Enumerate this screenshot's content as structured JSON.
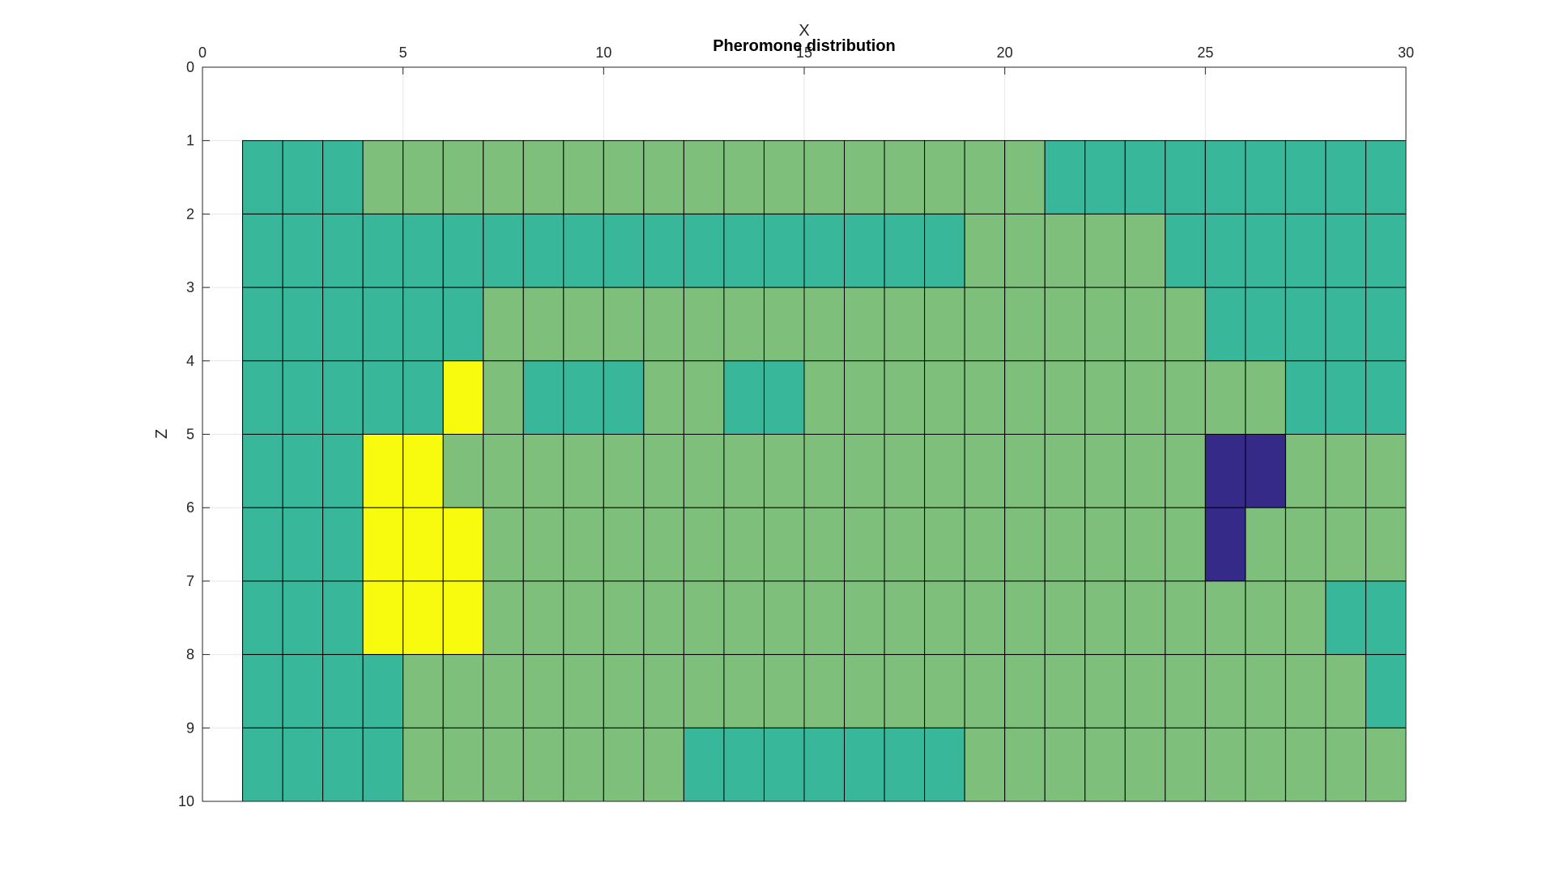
{
  "chart_data": {
    "type": "heatmap",
    "title": "Pheromone distribution",
    "xlabel": "X",
    "ylabel": "Z",
    "xlim": [
      0,
      30
    ],
    "ylim": [
      0,
      10
    ],
    "y_reversed": true,
    "x_axis_location": "top",
    "grid": true,
    "x_ticks": [
      0,
      5,
      10,
      15,
      20,
      25,
      30
    ],
    "y_ticks": [
      0,
      1,
      2,
      3,
      4,
      5,
      6,
      7,
      8,
      9,
      10
    ],
    "x_tick_labels": [
      "0",
      "5",
      "10",
      "15",
      "20",
      "25",
      "30"
    ],
    "y_tick_labels": [
      "0",
      "1",
      "2",
      "3",
      "4",
      "5",
      "6",
      "7",
      "8",
      "9",
      "10"
    ],
    "cell_x_edges": [
      1,
      30
    ],
    "cell_z_edges": [
      1,
      10
    ],
    "colormap": {
      "0": "#352a87",
      "1": "#38b79b",
      "2": "#7dbf7b",
      "3": "#f9fb0e"
    },
    "matrix": [
      [
        1,
        1,
        1,
        2,
        2,
        2,
        2,
        2,
        2,
        2,
        2,
        2,
        2,
        2,
        2,
        2,
        2,
        2,
        2,
        2,
        1,
        1,
        1,
        1,
        1,
        1,
        1,
        1,
        1
      ],
      [
        1,
        1,
        1,
        1,
        1,
        1,
        1,
        1,
        1,
        1,
        1,
        1,
        1,
        1,
        1,
        1,
        1,
        1,
        2,
        2,
        2,
        2,
        2,
        1,
        1,
        1,
        1,
        1,
        1
      ],
      [
        1,
        1,
        1,
        1,
        1,
        1,
        2,
        2,
        2,
        2,
        2,
        2,
        2,
        2,
        2,
        2,
        2,
        2,
        2,
        2,
        2,
        2,
        2,
        2,
        1,
        1,
        1,
        1,
        1
      ],
      [
        1,
        1,
        1,
        1,
        1,
        3,
        2,
        1,
        1,
        1,
        2,
        2,
        1,
        1,
        2,
        2,
        2,
        2,
        2,
        2,
        2,
        2,
        2,
        2,
        2,
        2,
        1,
        1,
        1
      ],
      [
        1,
        1,
        1,
        3,
        3,
        2,
        2,
        2,
        2,
        2,
        2,
        2,
        2,
        2,
        2,
        2,
        2,
        2,
        2,
        2,
        2,
        2,
        2,
        2,
        0,
        0,
        2,
        2,
        2
      ],
      [
        1,
        1,
        1,
        3,
        3,
        3,
        2,
        2,
        2,
        2,
        2,
        2,
        2,
        2,
        2,
        2,
        2,
        2,
        2,
        2,
        2,
        2,
        2,
        2,
        0,
        2,
        2,
        2,
        2
      ],
      [
        1,
        1,
        1,
        3,
        3,
        3,
        2,
        2,
        2,
        2,
        2,
        2,
        2,
        2,
        2,
        2,
        2,
        2,
        2,
        2,
        2,
        2,
        2,
        2,
        2,
        2,
        2,
        1,
        1
      ],
      [
        1,
        1,
        1,
        1,
        2,
        2,
        2,
        2,
        2,
        2,
        2,
        2,
        2,
        2,
        2,
        2,
        2,
        2,
        2,
        2,
        2,
        2,
        2,
        2,
        2,
        2,
        2,
        2,
        1
      ],
      [
        1,
        1,
        1,
        1,
        2,
        2,
        2,
        2,
        2,
        2,
        2,
        1,
        1,
        1,
        1,
        1,
        1,
        1,
        2,
        2,
        2,
        2,
        2,
        2,
        2,
        2,
        2,
        2,
        2
      ]
    ]
  }
}
